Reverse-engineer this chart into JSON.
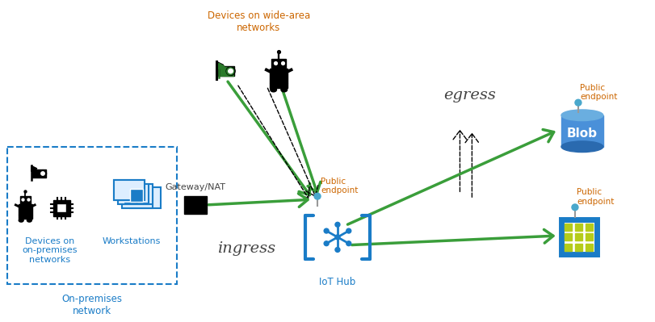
{
  "bg_color": "#ffffff",
  "green": "#3a9e3a",
  "blue_text": "#1a7cc7",
  "orange_text": "#CC6600",
  "black": "#000000",
  "dark_text": "#444444",
  "blob_blue": "#4a90d9",
  "blob_blue_top": "#6aaee0",
  "blob_blue_bot": "#2a6aaf",
  "storage_frame_blue": "#1a7cc7",
  "storage_yellow": "#b5cc1a",
  "endpoint_blue": "#4aa8cc",
  "label_ingress": "ingress",
  "label_egress": "egress",
  "label_gateway": "Gateway/NAT",
  "label_workstations": "Workstations",
  "label_devices_on_premises": "Devices on\non-premises\nnetworks",
  "label_on_premises_network": "On-premises\nnetwork",
  "label_devices_wide_area": "Devices on wide-area\nnetworks",
  "label_iot_hub": "IoT Hub",
  "label_public_endpoint_center": "Public\nendpoint",
  "label_public_endpoint_blob": "Public\nendpoint",
  "label_public_endpoint_storage": "Public\nendpoint",
  "label_blob": "Blob"
}
